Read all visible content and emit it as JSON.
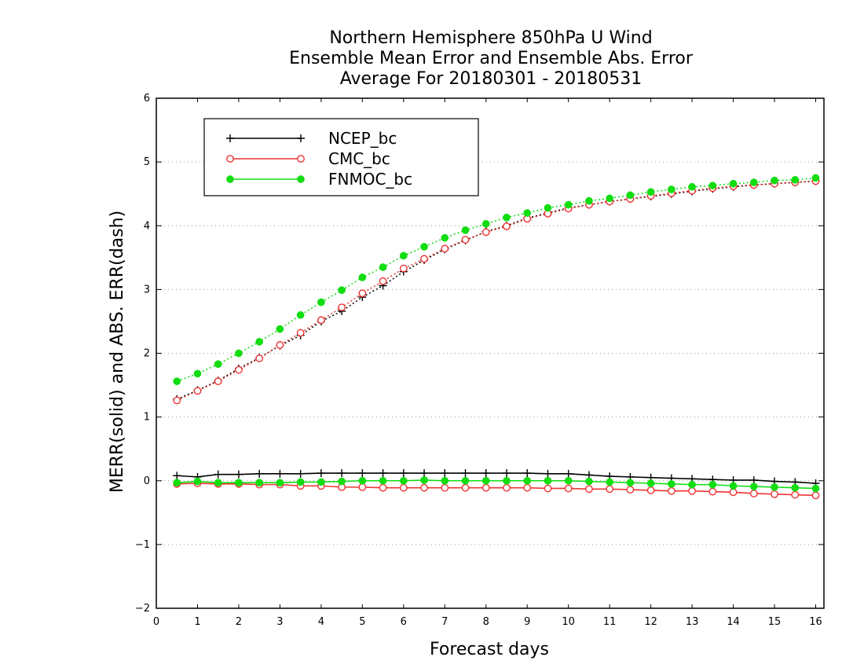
{
  "chart_data": {
    "type": "line",
    "title": [
      "Northern Hemisphere 850hPa U Wind",
      "Ensemble Mean Error and Ensemble Abs. Error",
      "Average For 20180301 - 20180531"
    ],
    "xlabel": "Forecast days",
    "ylabel": "MERR(solid) and ABS. ERR(dash)",
    "xlim": [
      0,
      16.2
    ],
    "ylim": [
      -2,
      6
    ],
    "xticks": [
      0,
      1,
      2,
      3,
      4,
      5,
      6,
      7,
      8,
      9,
      10,
      11,
      12,
      13,
      14,
      15,
      16
    ],
    "yticks": [
      -2,
      -1,
      0,
      1,
      2,
      3,
      4,
      5,
      6
    ],
    "ytick_labels": [
      "−2",
      "−1",
      "0",
      "1",
      "2",
      "3",
      "4",
      "5",
      "6"
    ],
    "grid": "horizontal dotted",
    "legend_position": "top-left",
    "x": [
      0.5,
      1.0,
      1.5,
      2.0,
      2.5,
      3.0,
      3.5,
      4.0,
      4.5,
      5.0,
      5.5,
      6.0,
      6.5,
      7.0,
      7.5,
      8.0,
      8.5,
      9.0,
      9.5,
      10.0,
      10.5,
      11.0,
      11.5,
      12.0,
      12.5,
      13.0,
      13.5,
      14.0,
      14.5,
      15.0,
      15.5,
      16.0
    ],
    "series": [
      {
        "name": "NCEP_bc",
        "color": "#000000",
        "marker": "plus",
        "merr": [
          0.08,
          0.06,
          0.1,
          0.1,
          0.11,
          0.11,
          0.11,
          0.12,
          0.12,
          0.12,
          0.12,
          0.12,
          0.12,
          0.12,
          0.12,
          0.12,
          0.12,
          0.12,
          0.11,
          0.11,
          0.09,
          0.07,
          0.06,
          0.05,
          0.04,
          0.03,
          0.02,
          0.01,
          0.01,
          -0.01,
          -0.02,
          -0.04
        ],
        "abs_err": [
          1.28,
          1.42,
          1.57,
          1.76,
          1.93,
          2.12,
          2.28,
          2.5,
          2.66,
          2.88,
          3.06,
          3.28,
          3.46,
          3.63,
          3.77,
          3.91,
          4.0,
          4.12,
          4.2,
          4.28,
          4.33,
          4.38,
          4.42,
          4.46,
          4.5,
          4.54,
          4.58,
          4.61,
          4.64,
          4.66,
          4.68,
          4.7
        ]
      },
      {
        "name": "CMC_bc",
        "color": "#ee3333",
        "marker": "open-circle",
        "merr": [
          -0.05,
          -0.04,
          -0.05,
          -0.05,
          -0.06,
          -0.06,
          -0.08,
          -0.08,
          -0.1,
          -0.1,
          -0.11,
          -0.11,
          -0.11,
          -0.11,
          -0.11,
          -0.11,
          -0.11,
          -0.11,
          -0.12,
          -0.12,
          -0.13,
          -0.13,
          -0.14,
          -0.15,
          -0.16,
          -0.16,
          -0.17,
          -0.18,
          -0.2,
          -0.21,
          -0.22,
          -0.23
        ],
        "abs_err": [
          1.26,
          1.41,
          1.56,
          1.74,
          1.92,
          2.13,
          2.32,
          2.52,
          2.72,
          2.94,
          3.13,
          3.33,
          3.48,
          3.64,
          3.78,
          3.9,
          3.99,
          4.11,
          4.19,
          4.27,
          4.33,
          4.38,
          4.42,
          4.47,
          4.51,
          4.55,
          4.59,
          4.62,
          4.64,
          4.66,
          4.68,
          4.7
        ]
      },
      {
        "name": "FNMOC_bc",
        "color": "#11dd11",
        "marker": "filled-circle",
        "merr": [
          -0.03,
          -0.01,
          -0.03,
          -0.03,
          -0.03,
          -0.03,
          -0.02,
          -0.02,
          -0.01,
          0.0,
          0.0,
          0.0,
          0.01,
          0.0,
          0.0,
          0.0,
          0.0,
          0.0,
          0.0,
          0.0,
          -0.01,
          -0.02,
          -0.03,
          -0.04,
          -0.05,
          -0.06,
          -0.06,
          -0.08,
          -0.09,
          -0.1,
          -0.11,
          -0.12
        ],
        "abs_err": [
          1.56,
          1.68,
          1.83,
          2.0,
          2.18,
          2.38,
          2.6,
          2.8,
          2.99,
          3.19,
          3.35,
          3.53,
          3.67,
          3.81,
          3.93,
          4.03,
          4.13,
          4.2,
          4.28,
          4.33,
          4.39,
          4.43,
          4.48,
          4.53,
          4.57,
          4.61,
          4.63,
          4.66,
          4.68,
          4.71,
          4.72,
          4.75
        ]
      }
    ]
  }
}
